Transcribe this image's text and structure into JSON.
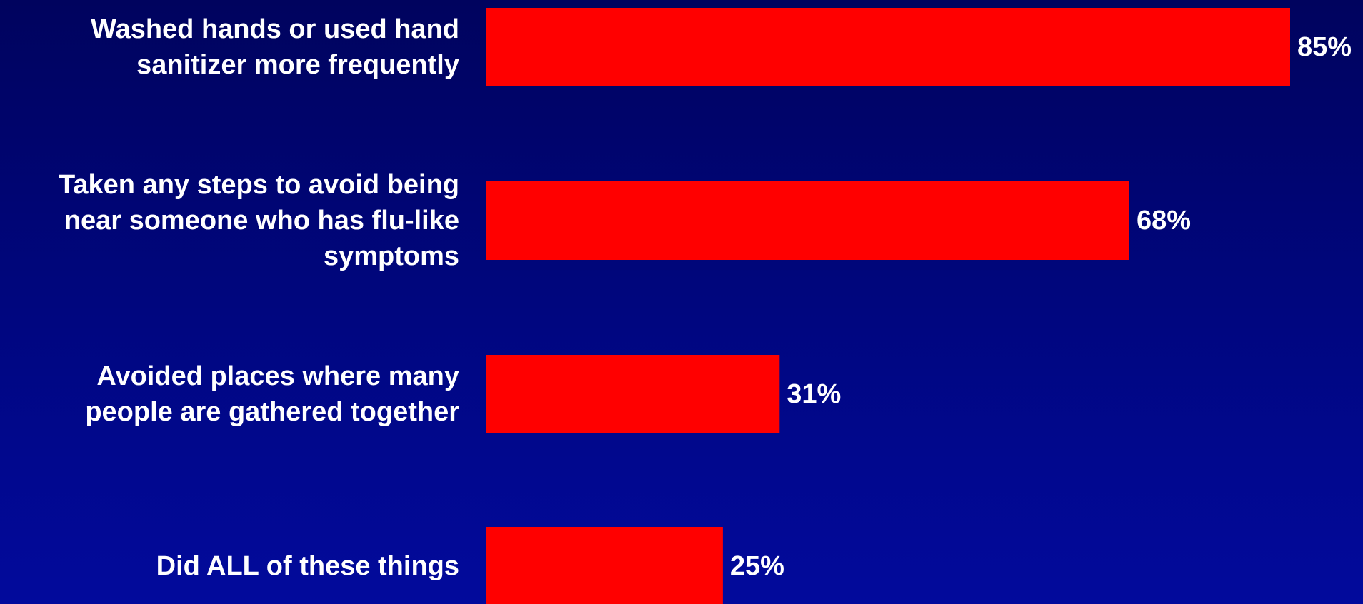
{
  "chart_data": {
    "type": "bar",
    "orientation": "horizontal",
    "categories": [
      [
        "Washed hands or used hand",
        "sanitizer more frequently"
      ],
      [
        "Taken any steps to avoid being",
        "near someone who has flu-like",
        "symptoms"
      ],
      [
        "Avoided places where many",
        "people are gathered together"
      ],
      [
        "Did ALL of these things"
      ]
    ],
    "values": [
      85,
      68,
      31,
      25
    ],
    "value_labels": [
      "85%",
      "68%",
      "31%",
      "25%"
    ],
    "value_unit": "%",
    "xlim": [
      0,
      100
    ],
    "grid": false,
    "legend": false,
    "colors": {
      "bar": "#ff0000",
      "text": "#ffffff",
      "background_top": "#00035e",
      "background_bottom": "#020a9c"
    }
  }
}
